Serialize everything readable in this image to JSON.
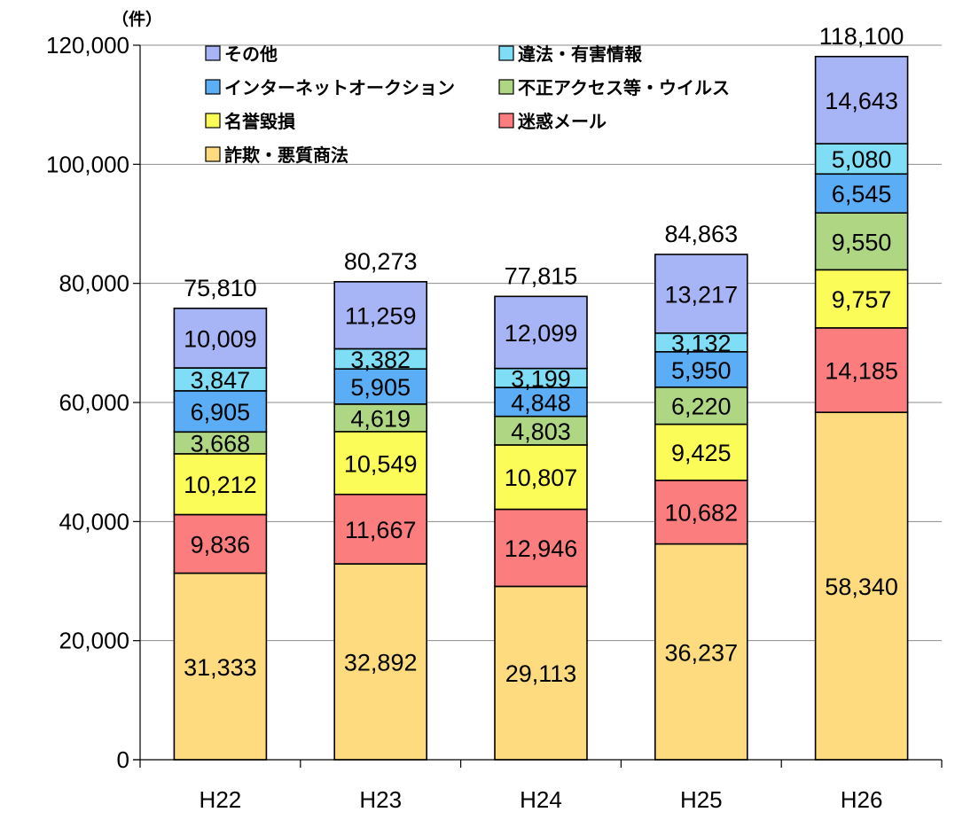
{
  "chart_data": {
    "type": "bar",
    "stacked": true,
    "unit_label": "（件）",
    "categories": [
      "H22",
      "H23",
      "H24",
      "H25",
      "H26"
    ],
    "series": [
      {
        "name": "詐欺・悪質商法",
        "color": "#FDDB7E",
        "values": [
          31333,
          32892,
          29113,
          36237,
          58340
        ]
      },
      {
        "name": "迷惑メール",
        "color": "#FB7D7D",
        "values": [
          9836,
          11667,
          12946,
          10682,
          14185
        ]
      },
      {
        "name": "名誉毀損",
        "color": "#FCFC58",
        "values": [
          10212,
          10549,
          10807,
          9425,
          9757
        ]
      },
      {
        "name": "不正アクセス等・ウイルス",
        "color": "#AFD683",
        "values": [
          3668,
          4619,
          4803,
          6220,
          9550
        ]
      },
      {
        "name": "インターネットオークション",
        "color": "#5BAEF5",
        "values": [
          6905,
          5905,
          4848,
          5950,
          6545
        ]
      },
      {
        "name": "違法・有害情報",
        "color": "#7FDDF5",
        "values": [
          3847,
          3382,
          3199,
          3132,
          5080
        ]
      },
      {
        "name": "その他",
        "color": "#A7B4F5",
        "values": [
          10009,
          11259,
          12099,
          13217,
          14643
        ]
      }
    ],
    "value_labels": [
      [
        "31,333",
        "32,892",
        "29,113",
        "36,237",
        "58,340"
      ],
      [
        "9,836",
        "11,667",
        "12,946",
        "10,682",
        "14,185"
      ],
      [
        "10,212",
        "10,549",
        "10,807",
        "9,425",
        "9,757"
      ],
      [
        "3,668",
        "4,619",
        "4,803",
        "6,220",
        "9,550"
      ],
      [
        "6,905",
        "5,905",
        "4,848",
        "5,950",
        "6,545"
      ],
      [
        "3,847",
        "3,382",
        "3,199",
        "3,132",
        "5,080"
      ],
      [
        "10,009",
        "11,259",
        "12,099",
        "13,217",
        "14,643"
      ]
    ],
    "totals": [
      75810,
      80273,
      77815,
      84863,
      118100
    ],
    "total_labels": [
      "75,810",
      "80,273",
      "77,815",
      "84,863",
      "118,100"
    ],
    "ylim": [
      0,
      120000
    ],
    "yticks": [
      0,
      20000,
      40000,
      60000,
      80000,
      100000,
      120000
    ],
    "ytick_labels": [
      "0",
      "20,000",
      "40,000",
      "60,000",
      "80,000",
      "100,000",
      "120,000"
    ],
    "grid": true,
    "legend_position": "top-left",
    "legend_order": [
      "その他",
      "違法・有害情報",
      "インターネットオークション",
      "不正アクセス等・ウイルス",
      "名誉毀損",
      "迷惑メール",
      "詐欺・悪質商法"
    ]
  }
}
